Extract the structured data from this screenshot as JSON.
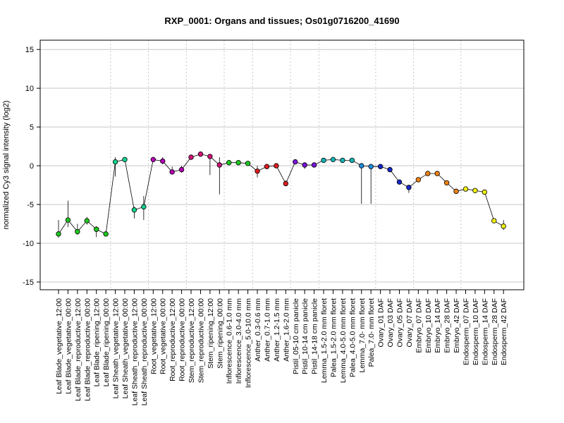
{
  "chart_data": {
    "type": "line",
    "title": "RXP_0001: Organs and tissues; Os01g0716200_41690",
    "xlabel": "",
    "ylabel": "normalized Cy3 signal intensity (log2)",
    "ylim": [
      -16,
      16.2
    ],
    "yticks": [
      -15,
      -10,
      -5,
      0,
      5,
      10,
      15
    ],
    "grid": true,
    "categories": [
      "Leaf Blade_vegetative_12:00",
      "Leaf Blade_vegetative_00:00",
      "Leaf Blade_reproductive_12:00",
      "Leaf Blade_reproductive_00:00",
      "Leaf Blade_ripening_12:00",
      "Leaf Blade_ripening_00:00",
      "Leaf Sheath_vegetative_12:00",
      "Leaf Sheath_vegetative_00:00",
      "Leaf Sheath_reproductive_12:00",
      "Leaf Sheath_reproductive_00:00",
      "Root_vegetative_12:00",
      "Root_vegetative_00:00",
      "Root_reproductive_12:00",
      "Root_reproductive_00:00",
      "Stem_reproductive_12:00",
      "Stem_reproductive_00:00",
      "Stem_ripening_12:00",
      "Stem_ripening_00:00",
      "Inflorescence_0.6-1.0 mm",
      "Inflorescence_3.0-4.0 mm",
      "Inflorescence_5.0-10.0 mm",
      "Anther_0.3-0.6 mm",
      "Anther_0.7-1.0 mm",
      "Anther_1.2-1.5 mm",
      "Anther_1.6-2.0 mm",
      "Pistil_05-10 cm panicle",
      "Pistil_10-14 cm panicle",
      "Pistil_14-18 cm panicle",
      "Lemma_1.5-2.0 mm floret",
      "Palea_1.5-2.0 mm floret",
      "Lemma_4.0-5.0 mm floret",
      "Palea_4.0-5.0 mm floret",
      "Lemma_7.0- mm floret",
      "Palea_7.0- mm floret",
      "Ovary_01 DAF",
      "Ovary_03 DAF",
      "Ovary_05 DAF",
      "Ovary_07 DAF",
      "Embryo_07 DAF",
      "Embryo_10 DAF",
      "Embryo_14 DAF",
      "Embryo_28 DAF",
      "Embryo_42 DAF",
      "Endosperm_07 DAF",
      "Endosperm_10 DAF",
      "Endosperm_14 DAF",
      "Endosperm_28 DAF",
      "Endosperm_42 DAF"
    ],
    "values": [
      -8.8,
      -7.0,
      -8.5,
      -7.1,
      -8.2,
      -8.8,
      0.5,
      0.8,
      -5.7,
      -5.3,
      0.8,
      0.6,
      -0.8,
      -0.5,
      1.1,
      1.5,
      1.2,
      0.1,
      0.4,
      0.4,
      0.3,
      -0.7,
      -0.1,
      0.0,
      -2.3,
      0.5,
      0.1,
      0.1,
      0.7,
      0.8,
      0.7,
      0.7,
      0.0,
      -0.1,
      -0.1,
      -0.5,
      -2.1,
      -2.8,
      -1.8,
      -1.0,
      -1.0,
      -2.2,
      -3.3,
      -3.0,
      -3.2,
      -3.4,
      -7.1,
      -7.8
    ],
    "err_lo": [
      -9.3,
      -7.9,
      -8.9,
      -7.6,
      -9.2,
      -9.0,
      -1.4,
      0.5,
      -6.8,
      -7.0,
      0.6,
      0.2,
      -1.1,
      -0.9,
      0.9,
      1.2,
      -1.2,
      -3.7,
      0.3,
      0.2,
      0.1,
      -1.5,
      -0.3,
      -0.2,
      -2.6,
      0.3,
      -0.4,
      -0.1,
      0.5,
      0.6,
      0.5,
      0.5,
      -4.9,
      -4.9,
      -0.3,
      -0.7,
      -2.3,
      -3.5,
      -2.0,
      -1.2,
      -1.3,
      -2.4,
      -3.6,
      -3.2,
      -3.4,
      -3.6,
      -7.3,
      -8.3
    ],
    "err_hi": [
      -7.0,
      -4.5,
      -7.5,
      -6.6,
      -7.8,
      -8.6,
      1.1,
      1.1,
      -5.3,
      -3.9,
      1.1,
      1.1,
      -0.1,
      0.0,
      1.2,
      1.7,
      1.5,
      1.1,
      0.6,
      0.6,
      0.5,
      0.0,
      0.2,
      0.2,
      -1.9,
      0.7,
      0.4,
      0.3,
      0.9,
      1.0,
      0.9,
      0.9,
      0.2,
      0.1,
      0.1,
      -0.3,
      -1.9,
      -2.5,
      -1.6,
      -0.8,
      -0.8,
      -2.0,
      -3.0,
      -2.8,
      -3.0,
      -3.2,
      -6.8,
      -7.0
    ],
    "colors": [
      "#1ec81e",
      "#1ec81e",
      "#1ec81e",
      "#1ec81e",
      "#1ec81e",
      "#1ec81e",
      "#14d28c",
      "#14d28c",
      "#14d28c",
      "#14d28c",
      "#b400b4",
      "#b400b4",
      "#b400b4",
      "#b400b4",
      "#d21478",
      "#d21478",
      "#d21478",
      "#d21478",
      "#1ec81e",
      "#1ec81e",
      "#1ec81e",
      "#dc1e1e",
      "#dc1e1e",
      "#dc1e1e",
      "#dc1e1e",
      "#7814dc",
      "#7814dc",
      "#7814dc",
      "#14b4b4",
      "#14b4b4",
      "#14b4b4",
      "#14b4b4",
      "#1e8cdc",
      "#1e8cdc",
      "#1428c8",
      "#1428c8",
      "#1428c8",
      "#1428c8",
      "#f08214",
      "#f08214",
      "#f08214",
      "#f08214",
      "#f08214",
      "#f0f014",
      "#f0f014",
      "#f0f014",
      "#f0f014",
      "#f0f014"
    ],
    "group_separators_after": [
      5,
      9,
      13,
      17,
      20,
      24,
      27,
      33,
      37,
      42
    ]
  }
}
